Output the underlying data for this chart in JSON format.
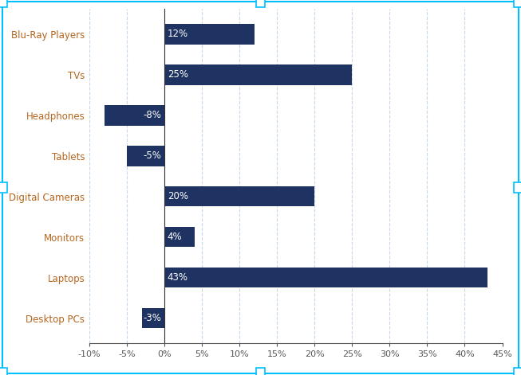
{
  "categories": [
    "Desktop PCs",
    "Laptops",
    "Monitors",
    "Digital Cameras",
    "Tablets",
    "Headphones",
    "TVs",
    "Blu-Ray Players"
  ],
  "values": [
    -3,
    43,
    4,
    20,
    -5,
    -8,
    25,
    12
  ],
  "bar_color": "#1e3361",
  "text_color_inside": "#ffffff",
  "label_color": "#b5651d",
  "xtick_color": "#555555",
  "xlim": [
    -10,
    45
  ],
  "xticks": [
    -10,
    -5,
    0,
    5,
    10,
    15,
    20,
    25,
    30,
    35,
    40,
    45
  ],
  "xtick_labels": [
    "-10%",
    "-5%",
    "0%",
    "5%",
    "10%",
    "15%",
    "20%",
    "25%",
    "30%",
    "35%",
    "40%",
    "45%"
  ],
  "grid_color": "#c8d8e8",
  "border_color": "#00bfff",
  "background_color": "#ffffff",
  "bar_height": 0.5
}
